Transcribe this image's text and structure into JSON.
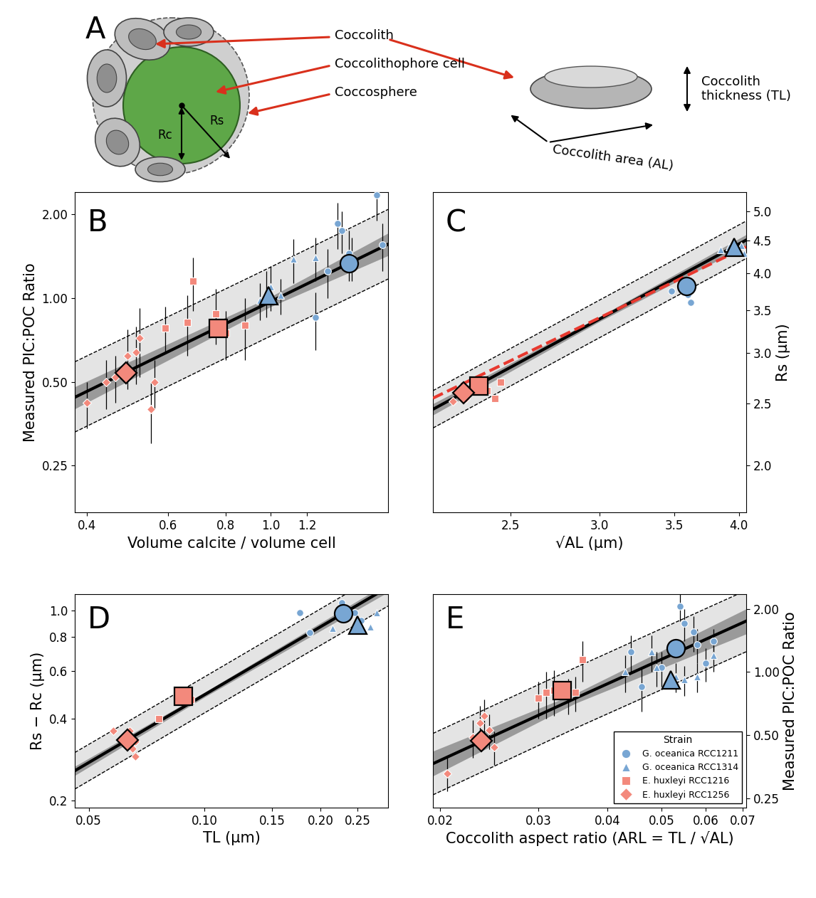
{
  "diagram": {
    "label": "A",
    "coccolith": "Coccolith",
    "cell": "Coccolithophore cell",
    "sphere": "Coccosphere",
    "cell_radius": "Rc",
    "sphere_radius": "Rs",
    "thickness": "Coccolith\nthickness (TL)",
    "area": "Coccolith area (AL)"
  },
  "chart_data": [
    {
      "type": "scatter",
      "title": "B",
      "log": true,
      "x_label": "Volume calcite / volume cell",
      "y_label": "Measured PIC:POC Ratio",
      "xlim": [
        0.376,
        1.8
      ],
      "ylim": [
        0.17,
        2.4
      ],
      "xticks": [
        0.4,
        0.6,
        0.8,
        {
          "value": 1,
          "label": "1.0"
        },
        1.2
      ],
      "yticks": [
        0.25,
        {
          "value": 0.5,
          "label": "0.50"
        },
        {
          "value": 1,
          "label": "1.00"
        },
        {
          "value": 2,
          "label": "2.00"
        }
      ],
      "fit": {
        "x": [
          0.376,
          1.0,
          1.8
        ],
        "y": [
          0.44,
          0.97,
          1.56
        ],
        "ci_lower": [
          0.4,
          0.93,
          1.42
        ],
        "ci_upper": [
          0.48,
          1.01,
          1.71
        ],
        "pi_lower": [
          0.33,
          0.73,
          1.17
        ],
        "pi_upper": [
          0.59,
          1.29,
          2.08
        ]
      },
      "series": [
        {
          "color": "#78a6d3",
          "marker": "circle",
          "x": [
            1.25,
            1.33,
            1.4,
            1.43,
            1.48,
            1.5,
            1.7,
            1.75
          ],
          "values": [
            0.85,
            1.25,
            1.85,
            1.75,
            1.45,
            1.4,
            2.35,
            1.55
          ],
          "yerr": [
            0.2,
            0.25,
            0.35,
            0.3,
            0.3,
            0.25,
            0.45,
            0.3
          ],
          "mean": [
            1.48,
            1.33
          ]
        },
        {
          "color": "#78a6d3",
          "marker": "triangle",
          "x": [
            0.95,
            0.98,
            1.0,
            1.05,
            1.12,
            1.25
          ],
          "values": [
            0.98,
            1.05,
            1.1,
            1.02,
            1.38,
            1.4
          ],
          "yerr": [
            0.15,
            0.2,
            0.2,
            0.15,
            0.25,
            0.25
          ],
          "mean": [
            0.99,
            1.02
          ]
        },
        {
          "color": "#f3897c",
          "marker": "square",
          "x": [
            0.59,
            0.66,
            0.68,
            0.76,
            0.8,
            0.88
          ],
          "values": [
            0.78,
            0.82,
            1.15,
            0.88,
            0.75,
            0.8
          ],
          "yerr": [
            0.15,
            0.2,
            0.25,
            0.2,
            0.15,
            0.2
          ],
          "mean": [
            0.77,
            0.78
          ]
        },
        {
          "color": "#f3897c",
          "marker": "diamond",
          "x": [
            0.4,
            0.44,
            0.46,
            0.49,
            0.51,
            0.52,
            0.55,
            0.56
          ],
          "values": [
            0.42,
            0.5,
            0.52,
            0.62,
            0.64,
            0.72,
            0.4,
            0.5
          ],
          "yerr": [
            0.08,
            0.1,
            0.1,
            0.15,
            0.15,
            0.2,
            0.1,
            0.1
          ],
          "mean": [
            0.485,
            0.54
          ]
        }
      ]
    },
    {
      "type": "scatter",
      "title": "C",
      "log": true,
      "x_label": "√AL (µm)",
      "y_label": "Rs (µm)",
      "xlim": [
        2.13,
        4.06
      ],
      "ylim": [
        1.69,
        5.36
      ],
      "xticks": [
        2.5,
        {
          "value": 3,
          "label": "3.0"
        },
        3.5,
        {
          "value": 4,
          "label": "4.0"
        }
      ],
      "yticks": [
        {
          "value": 2,
          "label": "2.0"
        },
        2.5,
        {
          "value": 3,
          "label": "3.0"
        },
        3.5,
        {
          "value": 4,
          "label": "4.0"
        },
        4.5,
        {
          "value": 5,
          "label": "5.0"
        }
      ],
      "fit": {
        "x": [
          2.13,
          3.0,
          4.06
        ],
        "y": [
          2.45,
          3.39,
          4.51
        ],
        "ci_lower": [
          2.4,
          3.36,
          4.42
        ],
        "ci_upper": [
          2.5,
          3.42,
          4.6
        ],
        "pi_lower": [
          2.29,
          3.17,
          4.22
        ],
        "pi_upper": [
          2.62,
          3.63,
          4.83
        ]
      },
      "reference": {
        "x": [
          2.13,
          4.06
        ],
        "y": [
          2.55,
          4.4
        ],
        "color": "#e8392f",
        "line_style": "dashed"
      },
      "series": [
        {
          "color": "#78a6d3",
          "marker": "circle",
          "x": [
            3.48,
            3.6,
            3.62,
            3.63
          ],
          "values": [
            3.75,
            3.7,
            3.6,
            3.78
          ],
          "mean": [
            3.59,
            3.82
          ]
        },
        {
          "color": "#78a6d3",
          "marker": "triangle",
          "x": [
            3.85,
            3.92,
            4.02,
            4.04
          ],
          "values": [
            4.35,
            4.4,
            4.42,
            4.3
          ],
          "mean": [
            3.96,
            4.4
          ]
        },
        {
          "color": "#f3897c",
          "marker": "square",
          "x": [
            2.38,
            2.42,
            2.45
          ],
          "values": [
            2.62,
            2.55,
            2.7
          ],
          "mean": [
            2.34,
            2.67
          ]
        },
        {
          "color": "#f3897c",
          "marker": "diamond",
          "x": [
            2.22,
            2.25,
            2.28,
            2.3
          ],
          "values": [
            2.52,
            2.58,
            2.55,
            2.62
          ],
          "mean": [
            2.27,
            2.6
          ]
        }
      ]
    },
    {
      "type": "scatter",
      "title": "D",
      "log": true,
      "x_label": "TL (µm)",
      "y_label": "Rs − Rc (µm)",
      "xlim": [
        0.046,
        0.3
      ],
      "ylim": [
        0.188,
        1.15
      ],
      "xticks": [
        0.05,
        {
          "value": 0.1,
          "label": "0.10"
        },
        0.15,
        {
          "value": 0.2,
          "label": "0.20"
        },
        0.25
      ],
      "yticks": [
        0.2,
        0.4,
        0.6,
        0.8,
        {
          "value": 1,
          "label": "1.0"
        }
      ],
      "fit": {
        "x": [
          0.046,
          0.1,
          0.3
        ],
        "y": [
          0.257,
          0.49,
          1.22
        ],
        "ci_lower": [
          0.247,
          0.48,
          1.17
        ],
        "ci_upper": [
          0.267,
          0.5,
          1.27
        ],
        "pi_lower": [
          0.22,
          0.42,
          1.04
        ],
        "pi_upper": [
          0.3,
          0.57,
          1.42
        ]
      },
      "series": [
        {
          "color": "#78a6d3",
          "marker": "circle",
          "x": [
            0.177,
            0.188,
            0.227,
            0.246,
            0.255
          ],
          "values": [
            0.98,
            0.83,
            1.07,
            0.98,
            0.92
          ],
          "mean": [
            0.229,
            0.975
          ]
        },
        {
          "color": "#78a6d3",
          "marker": "triangle",
          "x": [
            0.215,
            0.27,
            0.28
          ],
          "values": [
            0.86,
            0.87,
            0.98
          ],
          "mean": [
            0.25,
            0.885
          ]
        },
        {
          "color": "#f3897c",
          "marker": "square",
          "x": [
            0.076,
            0.086,
            0.088,
            0.092
          ],
          "values": [
            0.4,
            0.48,
            0.49,
            0.47
          ],
          "mean": [
            0.088,
            0.485
          ]
        },
        {
          "color": "#f3897c",
          "marker": "diamond",
          "x": [
            0.058,
            0.064,
            0.065,
            0.066,
            0.066
          ],
          "values": [
            0.36,
            0.36,
            0.31,
            0.29,
            0.33
          ],
          "mean": [
            0.063,
            0.334
          ]
        }
      ]
    },
    {
      "type": "scatter",
      "title": "E",
      "log": true,
      "x_label": "Coccolith aspect ratio (ARL = TL / √AL)",
      "y_label": "Measured PIC:POC Ratio",
      "xlim": [
        0.0194,
        0.071
      ],
      "ylim": [
        0.226,
        2.35
      ],
      "xticks": [
        0.02,
        0.03,
        0.04,
        0.05,
        0.06,
        0.07
      ],
      "yticks": [
        0.25,
        {
          "value": 0.5,
          "label": "0.50"
        },
        {
          "value": 1,
          "label": "1.00"
        },
        {
          "value": 2,
          "label": "2.00"
        }
      ],
      "legend": "lower right",
      "legend_title": "Strain",
      "fit": {
        "x": [
          0.0194,
          0.035,
          0.071
        ],
        "y": [
          0.366,
          0.75,
          1.75
        ],
        "ci_lower": [
          0.32,
          0.71,
          1.52
        ],
        "ci_upper": [
          0.42,
          0.79,
          2.0
        ],
        "pi_lower": [
          0.26,
          0.54,
          1.25
        ],
        "pi_upper": [
          0.51,
          1.05,
          2.45
        ]
      },
      "series": [
        {
          "name": "G. oceanica RCC1211",
          "color": "#78a6d3",
          "marker": "circle",
          "x": [
            0.044,
            0.046,
            0.05,
            0.054,
            0.055,
            0.057,
            0.058,
            0.06,
            0.062
          ],
          "values": [
            1.25,
            0.85,
            1.05,
            2.05,
            1.7,
            1.55,
            1.35,
            1.1,
            1.4
          ],
          "yerr": [
            0.25,
            0.2,
            0.2,
            0.3,
            0.3,
            0.3,
            0.25,
            0.2,
            0.2
          ],
          "mean": [
            0.053,
            1.3
          ]
        },
        {
          "name": "G. oceanica RCC1314",
          "color": "#78a6d3",
          "marker": "triangle",
          "x": [
            0.043,
            0.048,
            0.049,
            0.053,
            0.055,
            0.058,
            0.062
          ],
          "values": [
            1.0,
            1.25,
            1.05,
            0.95,
            0.92,
            0.95,
            1.2
          ],
          "yerr": [
            0.2,
            0.25,
            0.2,
            0.15,
            0.15,
            0.15,
            0.2
          ],
          "mean": [
            0.052,
            0.92
          ]
        },
        {
          "name": "E. huxleyi RCC1216",
          "color": "#f3897c",
          "marker": "square",
          "x": [
            0.03,
            0.031,
            0.032,
            0.034,
            0.035,
            0.036
          ],
          "values": [
            0.75,
            0.8,
            0.82,
            0.78,
            0.8,
            1.15
          ],
          "yerr": [
            0.15,
            0.2,
            0.2,
            0.15,
            0.15,
            0.25
          ],
          "mean": [
            0.0331,
            0.82
          ]
        },
        {
          "name": "E. huxleyi RCC1256",
          "color": "#f3897c",
          "marker": "diamond",
          "x": [
            0.0206,
            0.0229,
            0.0236,
            0.024,
            0.0245,
            0.025
          ],
          "values": [
            0.33,
            0.49,
            0.57,
            0.62,
            0.53,
            0.44
          ],
          "yerr": [
            0.06,
            0.1,
            0.12,
            0.12,
            0.1,
            0.08
          ],
          "mean": [
            0.0237,
            0.47
          ]
        }
      ]
    }
  ]
}
